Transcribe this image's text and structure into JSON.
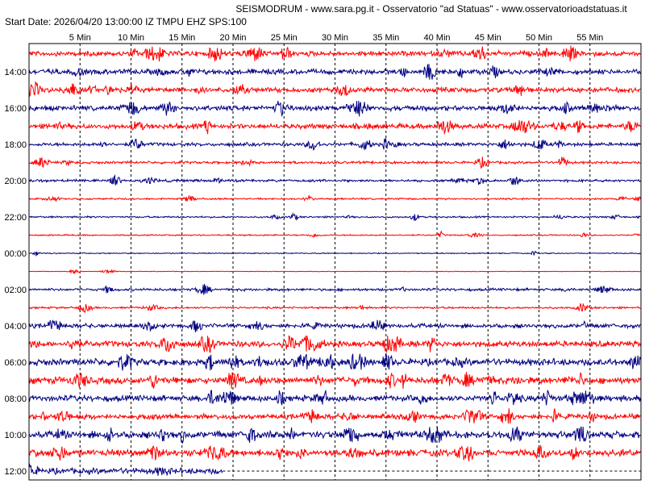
{
  "header": {
    "title": "SEISMODRUM - www.sara.pg.it - Osservatorio \"ad Statuas\" - www.osservatorioadstatuas.it",
    "start_line": "Start Date: 2026/04/20 13:00:00 IZ TMPU EHZ SPS:100"
  },
  "colors": {
    "odd": "#ff0000",
    "even": "#000080",
    "grid": "#000000",
    "frame": "#000000"
  },
  "chart_data": {
    "type": "line",
    "title": "SEISMODRUM - www.sara.pg.it - Osservatorio \"ad Statuas\" - www.osservatorioadstatuas.it",
    "x_tick_labels": [
      "5 Min",
      "10 Min",
      "15 Min",
      "20 Min",
      "25 Min",
      "30 Min",
      "35 Min",
      "40 Min",
      "45 Min",
      "50 Min",
      "55 Min"
    ],
    "x_ticks_min": [
      5,
      10,
      15,
      20,
      25,
      30,
      35,
      40,
      45,
      50,
      55
    ],
    "xlim_min": [
      0,
      60
    ],
    "y_tick_labels": [
      "14:00",
      "16:00",
      "18:00",
      "20:00",
      "22:00",
      "00:00",
      "02:00",
      "04:00",
      "06:00",
      "08:00",
      "10:00",
      "12:00"
    ],
    "row_start_hours": [
      "13:00",
      "14:00",
      "15:00",
      "16:00",
      "17:00",
      "18:00",
      "19:00",
      "20:00",
      "21:00",
      "22:00",
      "23:00",
      "00:00",
      "01:00",
      "02:00",
      "03:00",
      "04:00",
      "05:00",
      "06:00",
      "07:00",
      "08:00",
      "09:00",
      "10:00",
      "11:00",
      "12:00"
    ],
    "row_activity": [
      3,
      3,
      3,
      3,
      3,
      2,
      1.5,
      1.5,
      1,
      1,
      0.8,
      0.6,
      0.3,
      1.5,
      1.2,
      2.5,
      3.5,
      4,
      4,
      3.5,
      3,
      4,
      4,
      3.5
    ],
    "last_row_data_end_min": 19,
    "grid": true,
    "grid_style": "dashed"
  }
}
